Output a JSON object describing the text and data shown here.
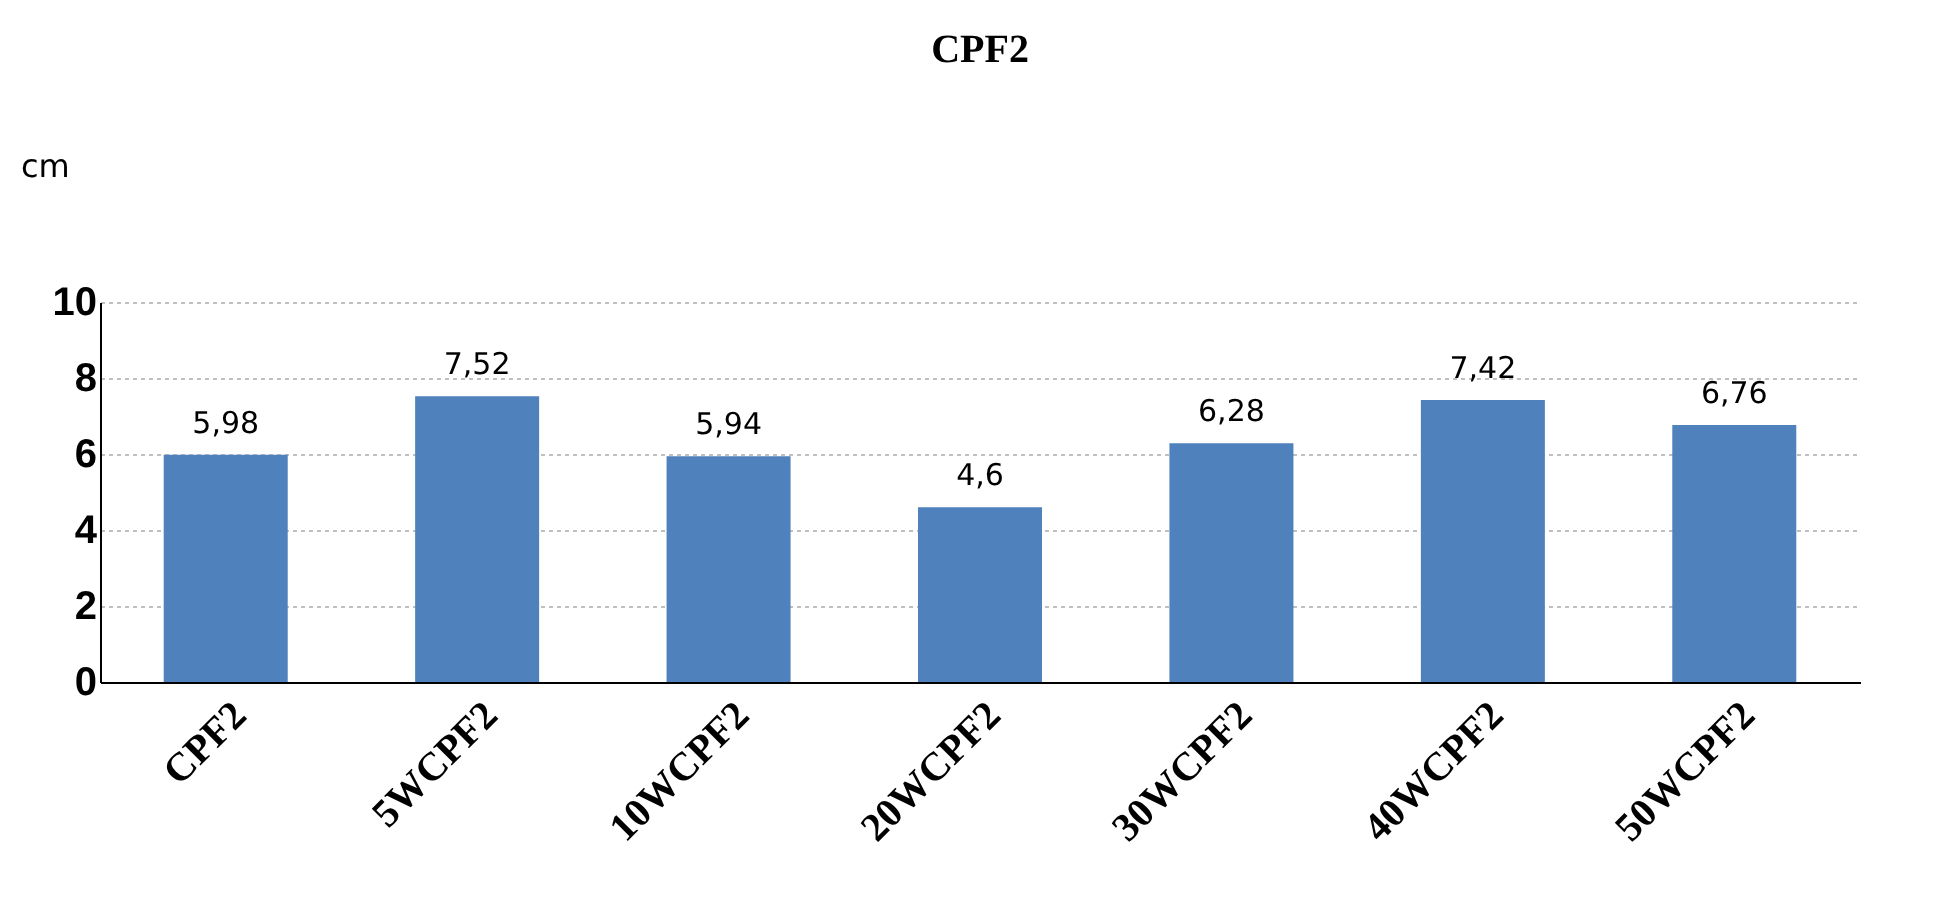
{
  "chart_data": {
    "type": "bar",
    "title": "CPF2",
    "ylabel": "cm",
    "categories": [
      "CPF2",
      "5WCPF2",
      "10WCPF2",
      "20WCPF2",
      "30WCPF2",
      "40WCPF2",
      "50WCPF2"
    ],
    "values": [
      5.98,
      7.52,
      5.94,
      4.6,
      6.28,
      7.42,
      6.76
    ],
    "value_labels": [
      "5,98",
      "7,52",
      "5,94",
      "4,6",
      "6,28",
      "7,42",
      "6,76"
    ],
    "color": "#4f81bd",
    "ylim": [
      0,
      10
    ],
    "yticks": [
      0,
      2,
      4,
      6,
      8,
      10
    ],
    "grid": "y"
  }
}
